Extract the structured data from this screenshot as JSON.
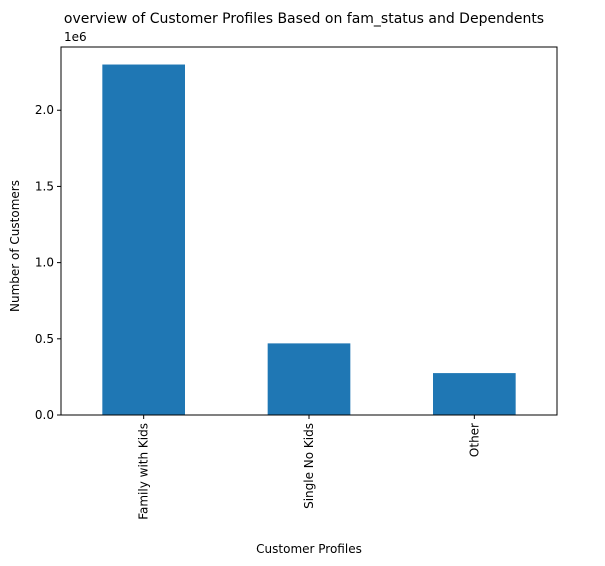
{
  "chart_data": {
    "type": "bar",
    "title": "overview of Customer Profiles Based on fam_status and Dependents",
    "xlabel": "Customer Profiles",
    "ylabel": "Number of Customers",
    "offset_label": "1e6",
    "categories": [
      "Family with Kids",
      "Single No Kids",
      "Other"
    ],
    "values": [
      2300000,
      470000,
      275000
    ],
    "ylim": [
      0,
      2415000
    ],
    "yticks": [
      0,
      500000,
      1000000,
      1500000,
      2000000
    ],
    "ytick_labels": [
      "0.0",
      "0.5",
      "1.0",
      "1.5",
      "2.0"
    ],
    "grid": false,
    "legend": "none",
    "bar_color": "#1f77b4"
  }
}
